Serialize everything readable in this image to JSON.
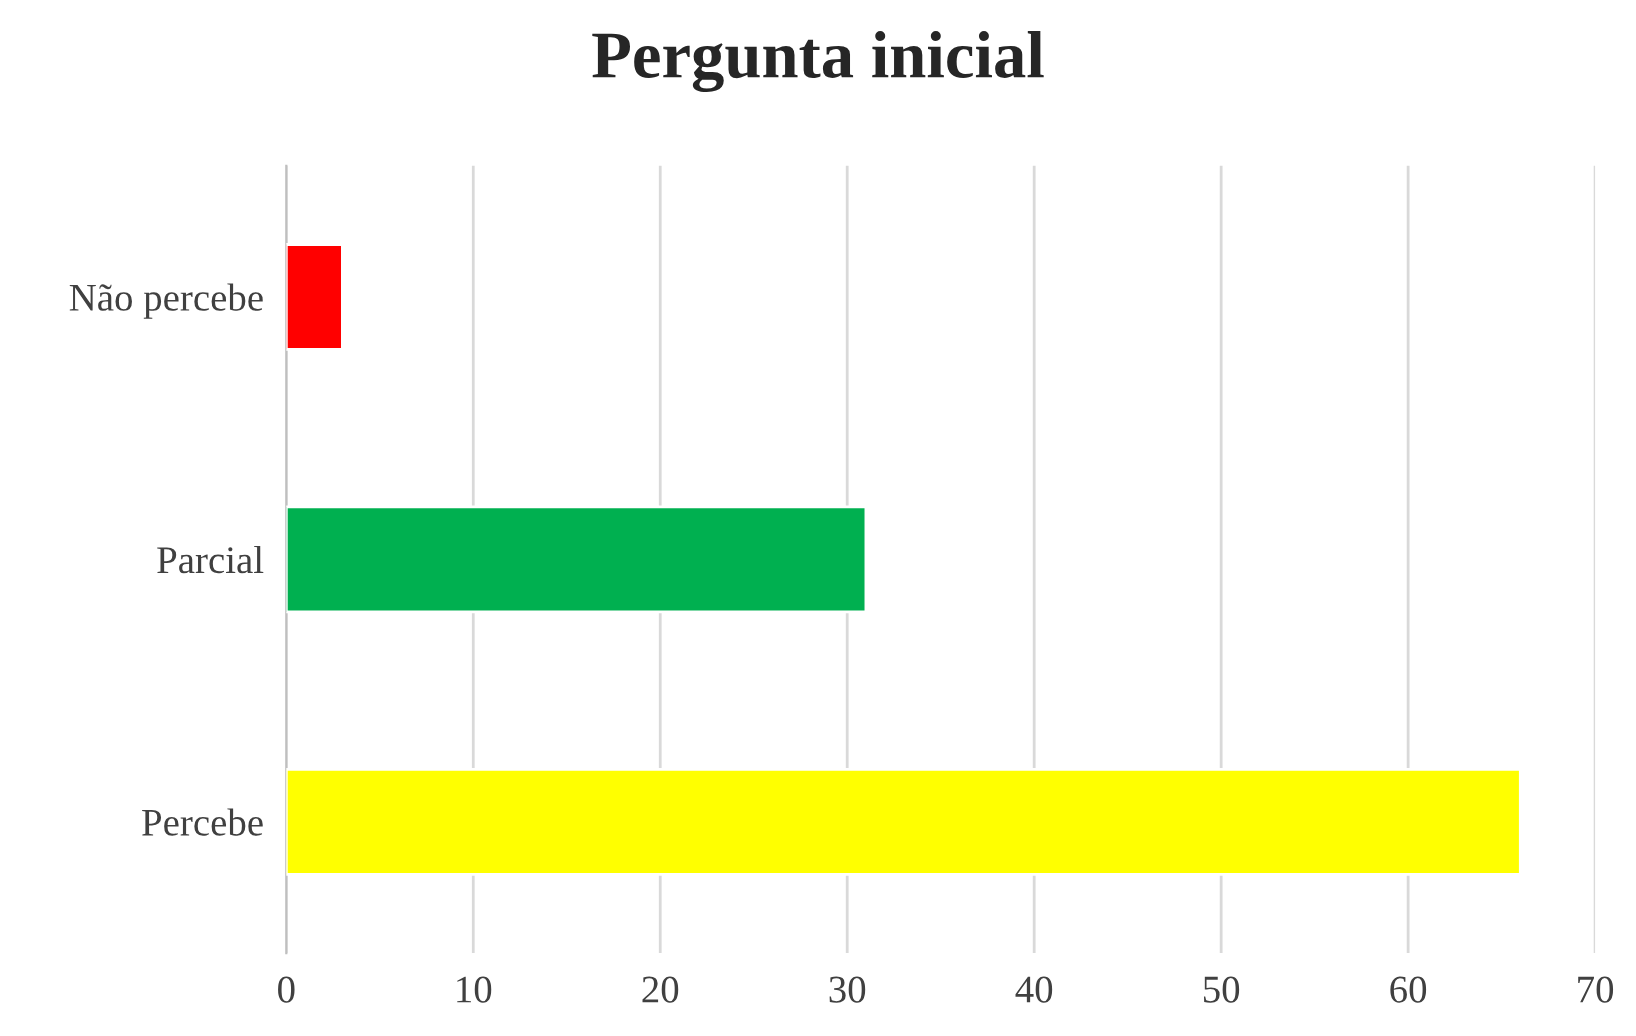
{
  "chart_data": {
    "type": "bar",
    "orientation": "horizontal",
    "title": "Pergunta inicial",
    "categories": [
      "Não percebe",
      "Parcial",
      "Percebe"
    ],
    "values": [
      3,
      31,
      66
    ],
    "colors": [
      "#ff0000",
      "#00b050",
      "#ffff00"
    ],
    "xlim": [
      0,
      70
    ],
    "xticks": [
      0,
      10,
      20,
      30,
      40,
      50,
      60,
      70
    ],
    "grid": "x",
    "legend": false
  }
}
